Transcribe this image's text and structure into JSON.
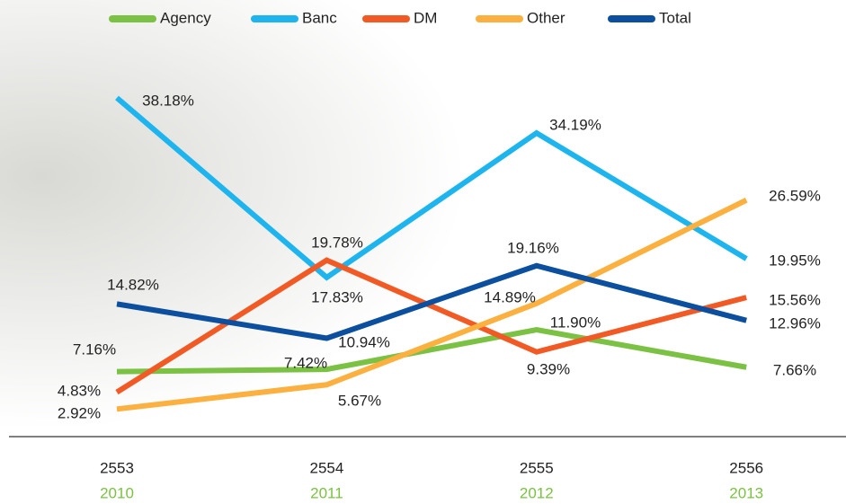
{
  "chart_data": {
    "type": "line",
    "categories": [
      "2553",
      "2554",
      "2555",
      "2556"
    ],
    "categories_alt": [
      "2010",
      "2011",
      "2012",
      "2013"
    ],
    "ylim": [
      0,
      40
    ],
    "series": [
      {
        "name": "Agency",
        "color": "#7bc143",
        "values": [
          7.16,
          7.42,
          11.9,
          7.66
        ],
        "value_labels": [
          "7.16%",
          "7.42%",
          "11.90%",
          "7.66%"
        ]
      },
      {
        "name": "Banc",
        "color": "#1eb4ee",
        "values": [
          38.18,
          17.83,
          34.19,
          19.95
        ],
        "value_labels": [
          "38.18%",
          "17.83%",
          "34.19%",
          "19.95%"
        ]
      },
      {
        "name": "DM",
        "color": "#f15a24",
        "values": [
          4.83,
          19.78,
          9.39,
          15.56
        ],
        "value_labels": [
          "4.83%",
          "19.78%",
          "9.39%",
          "15.56%"
        ]
      },
      {
        "name": "Other",
        "color": "#fbb040",
        "values": [
          2.92,
          5.67,
          14.89,
          26.59
        ],
        "value_labels": [
          "2.92%",
          "5.67%",
          "14.89%",
          "26.59%"
        ]
      },
      {
        "name": "Total",
        "color": "#0b4f9e",
        "values": [
          14.82,
          10.94,
          19.16,
          12.96
        ],
        "value_labels": [
          "14.82%",
          "10.94%",
          "19.16%",
          "12.96%"
        ]
      }
    ]
  }
}
